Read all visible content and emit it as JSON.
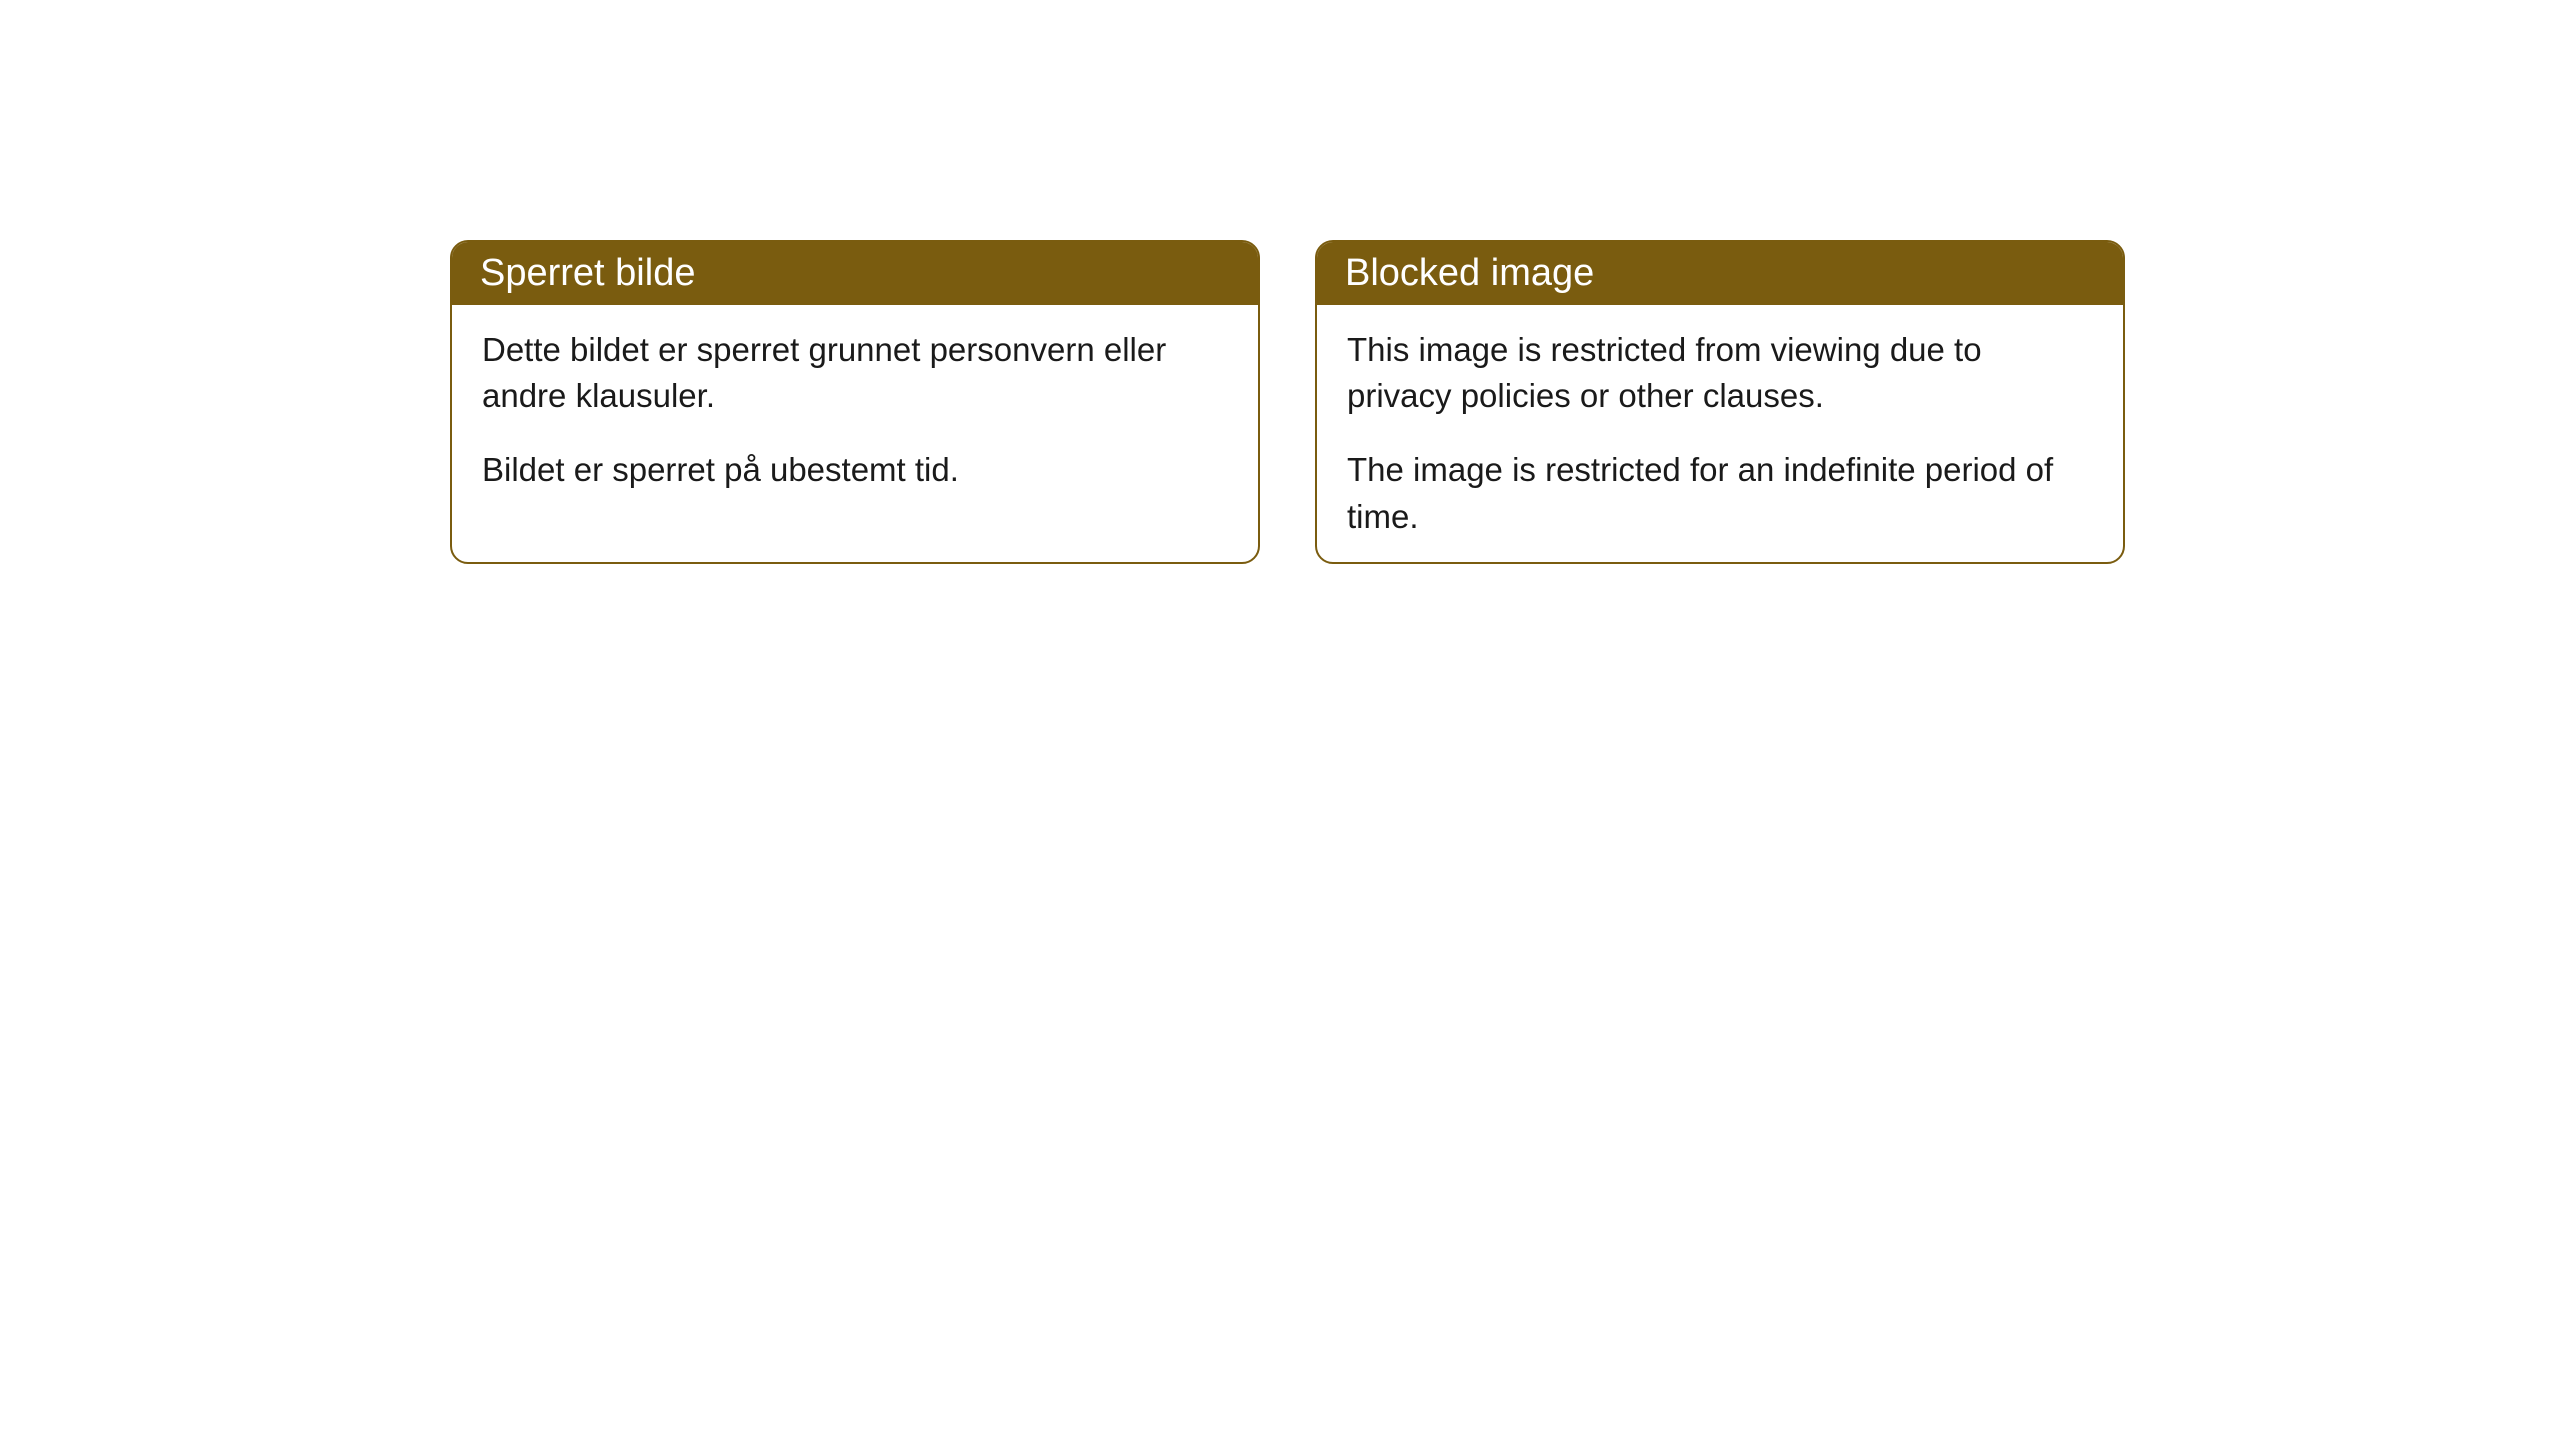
{
  "cards": {
    "left": {
      "title": "Sperret bilde",
      "paragraph1": "Dette bildet er sperret grunnet personvern eller andre klausuler.",
      "paragraph2": "Bildet er sperret på ubestemt tid."
    },
    "right": {
      "title": "Blocked image",
      "paragraph1": "This image is restricted from viewing due to privacy policies or other clauses.",
      "paragraph2": "The image is restricted for an indefinite period of time."
    }
  },
  "styling": {
    "header_bg_color": "#7a5c0f",
    "header_text_color": "#ffffff",
    "border_color": "#7a5c0f",
    "body_bg_color": "#ffffff",
    "body_text_color": "#1a1a1a",
    "border_radius": 18,
    "header_fontsize": 38,
    "body_fontsize": 33
  }
}
